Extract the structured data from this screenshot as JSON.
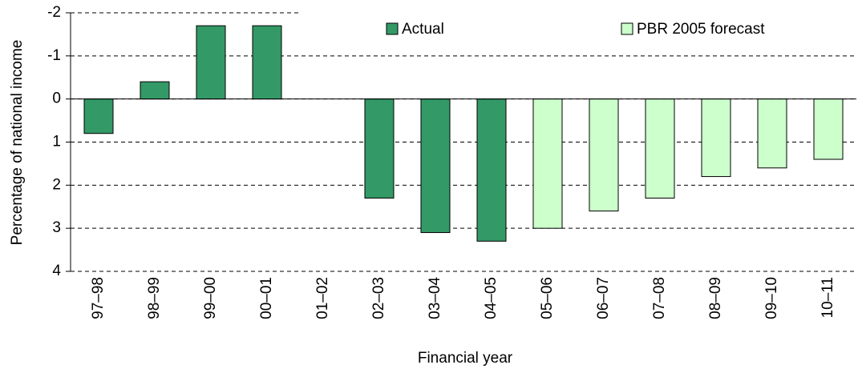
{
  "chart_data": {
    "type": "bar",
    "y_axis_label": "Percentage of national income",
    "x_axis_label": "Financial year",
    "categories": [
      "97–98",
      "98–99",
      "99–00",
      "00–01",
      "01–02",
      "02–03",
      "03–04",
      "04–05",
      "05–06",
      "06–07",
      "07–08",
      "08–09",
      "09–10",
      "10–11"
    ],
    "series": [
      {
        "name": "Actual",
        "color": "#339966",
        "values": [
          0.8,
          -0.4,
          -1.7,
          -1.7,
          0,
          2.3,
          3.1,
          3.3,
          null,
          null,
          null,
          null,
          null,
          null
        ]
      },
      {
        "name": "PBR 2005 forecast",
        "color": "#ccffcc",
        "values": [
          null,
          null,
          null,
          null,
          null,
          null,
          null,
          null,
          3.0,
          2.6,
          2.3,
          1.8,
          1.6,
          1.4
        ]
      }
    ],
    "ylim": [
      -2,
      4
    ],
    "y_inverted": true,
    "yticks": [
      -2,
      -1,
      0,
      1,
      2,
      3,
      4
    ],
    "grid": true,
    "legend": "top"
  }
}
